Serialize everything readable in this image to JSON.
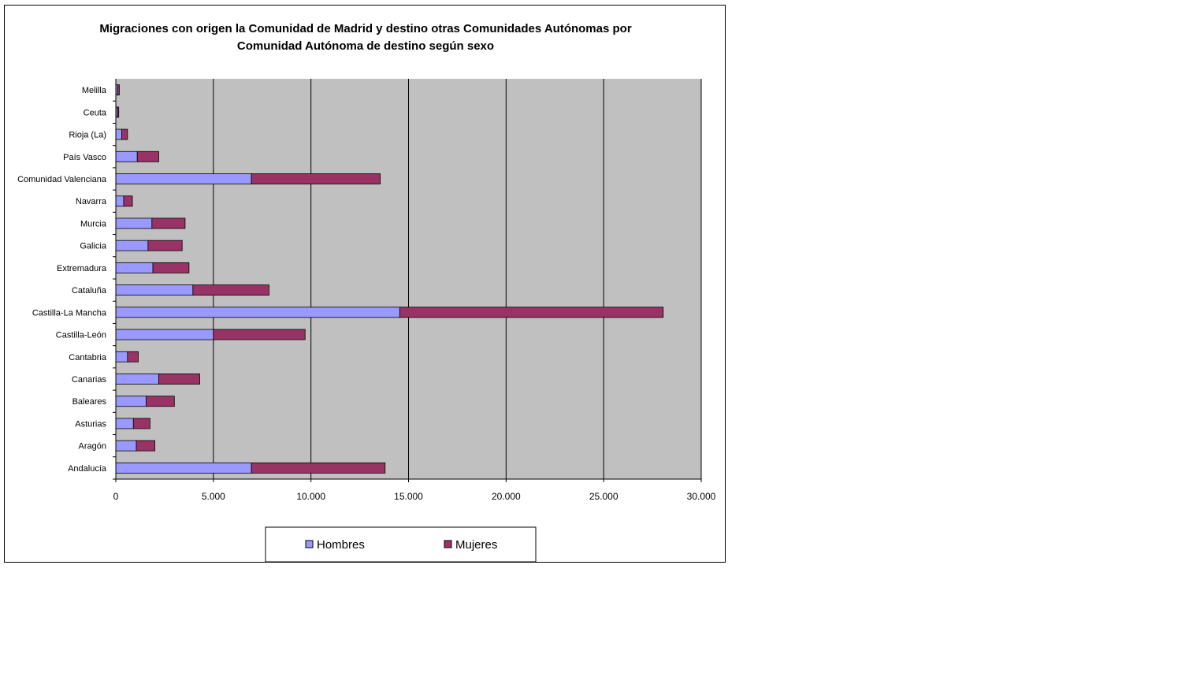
{
  "colors": {
    "plot_background": "#c0c0c0",
    "hombres": "#9999ff",
    "mujeres": "#993366",
    "gridline": "#000000"
  },
  "chart_data": {
    "type": "bar",
    "orientation": "horizontal",
    "stacked": true,
    "title_line1": "Migraciones con origen la Comunidad de Madrid y destino otras Comunidades Autónomas por",
    "title_line2": "Comunidad Autónoma de destino según sexo",
    "categories": [
      "Andalucía",
      "Aragón",
      "Asturias",
      "Baleares",
      "Canarias",
      "Cantabria",
      "Castilla-León",
      "Castilla-La Mancha",
      "Cataluña",
      "Extremadura",
      "Galicia",
      "Murcia",
      "Navarra",
      "Comunidad Valenciana",
      "País Vasco",
      "Rioja (La)",
      "Ceuta",
      "Melilla"
    ],
    "series": [
      {
        "name": "Hombres",
        "values": [
          6950,
          1050,
          900,
          1550,
          2200,
          600,
          5000,
          14550,
          3950,
          1900,
          1650,
          1850,
          400,
          6950,
          1100,
          300,
          80,
          90
        ]
      },
      {
        "name": "Mujeres",
        "values": [
          6850,
          950,
          850,
          1450,
          2100,
          550,
          4700,
          13500,
          3900,
          1850,
          1750,
          1700,
          450,
          6600,
          1100,
          300,
          70,
          90
        ]
      }
    ],
    "xlim": [
      0,
      30000
    ],
    "xticks": [
      0,
      5000,
      10000,
      15000,
      20000,
      25000,
      30000
    ],
    "xtick_labels": [
      "0",
      "5.000",
      "10.000",
      "15.000",
      "20.000",
      "25.000",
      "30.000"
    ],
    "grid": "vertical",
    "legend": {
      "position": "bottom",
      "labels": [
        "Hombres",
        "Mujeres"
      ]
    }
  }
}
